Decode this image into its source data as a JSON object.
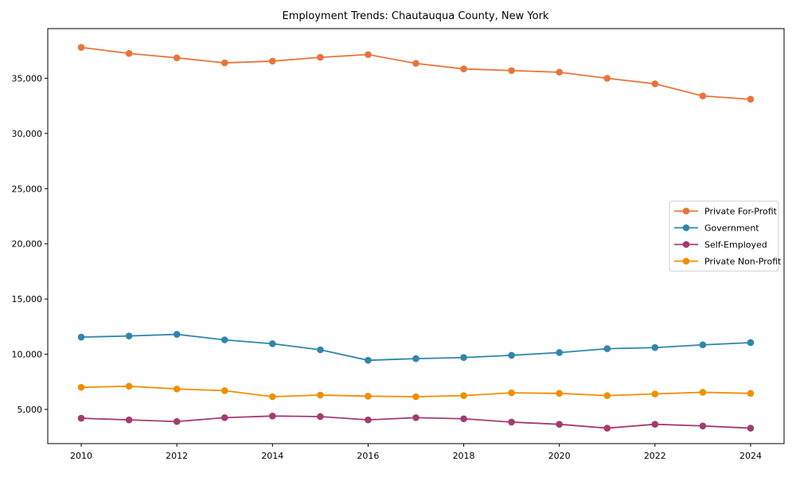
{
  "title": "Employment Trends: Chautauqua County, New York",
  "chart_data": {
    "type": "line",
    "x": [
      2010,
      2011,
      2012,
      2013,
      2014,
      2015,
      2016,
      2017,
      2018,
      2019,
      2020,
      2021,
      2022,
      2023,
      2024
    ],
    "series": [
      {
        "name": "Private For-Profit",
        "color": "#E8743B",
        "values": [
          37800,
          37250,
          36850,
          36400,
          36550,
          36900,
          37150,
          36350,
          35850,
          35700,
          35550,
          35000,
          34500,
          33400,
          33100
        ]
      },
      {
        "name": "Government",
        "color": "#2E86AB",
        "values": [
          11550,
          11650,
          11800,
          11300,
          10950,
          10400,
          9450,
          9600,
          9700,
          9900,
          10150,
          10500,
          10600,
          10850,
          11050
        ]
      },
      {
        "name": "Self-Employed",
        "color": "#A23B72",
        "values": [
          4200,
          4050,
          3900,
          4250,
          4400,
          4350,
          4050,
          4250,
          4150,
          3850,
          3650,
          3300,
          3650,
          3500,
          3300
        ]
      },
      {
        "name": "Private Non-Profit",
        "color": "#F18F01",
        "values": [
          7000,
          7100,
          6850,
          6700,
          6150,
          6300,
          6200,
          6150,
          6250,
          6500,
          6450,
          6250,
          6400,
          6550,
          6450
        ]
      }
    ],
    "xticks": [
      2010,
      2012,
      2014,
      2016,
      2018,
      2020,
      2022,
      2024
    ],
    "yticks": [
      5000,
      10000,
      15000,
      20000,
      25000,
      30000,
      35000
    ],
    "xlim": [
      2009.3,
      2024.7
    ],
    "ylim": [
      1900,
      39500
    ],
    "grid": false,
    "xlabel": "",
    "ylabel": "",
    "legend": {
      "position": "center right",
      "frame_color": "#cccccc",
      "background": "#ffffff"
    }
  }
}
